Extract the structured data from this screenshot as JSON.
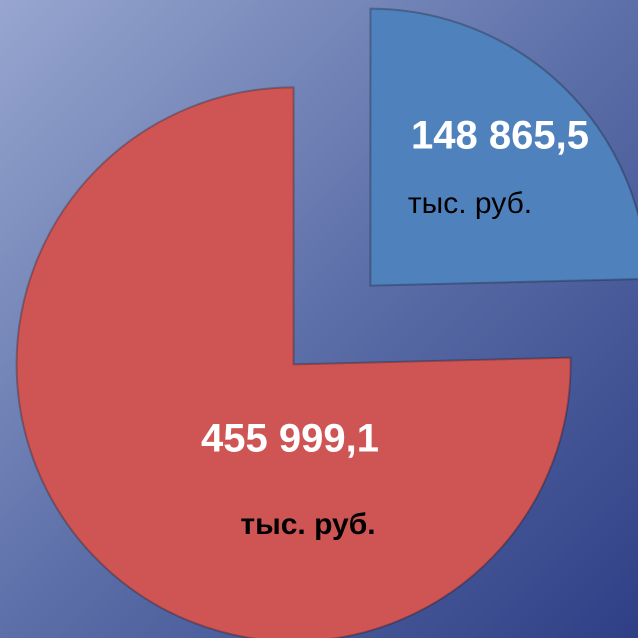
{
  "chart_data": {
    "type": "pie",
    "categories": [
      null,
      null
    ],
    "values": [
      148865.5,
      455999.1
    ],
    "value_labels": [
      "148 865,5",
      "455 999,1"
    ],
    "unit": "тыс. руб.",
    "colors": [
      "#4f81bd",
      "#cf5555"
    ],
    "exploded": true
  }
}
